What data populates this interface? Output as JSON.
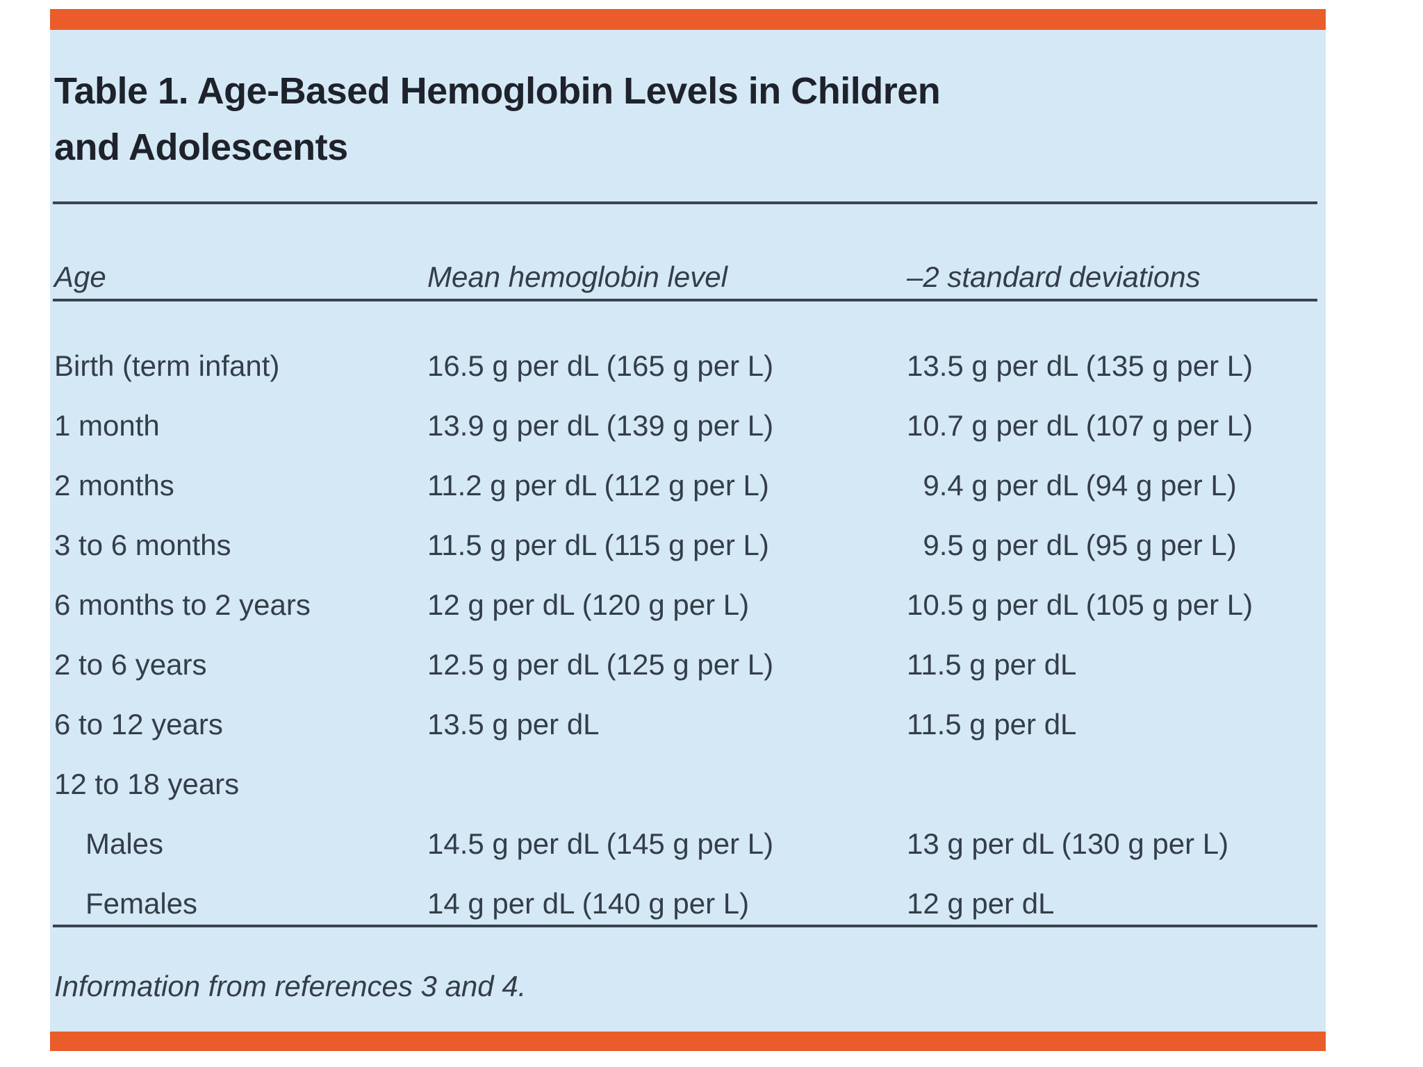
{
  "colors": {
    "accent_orange": "#ea5c2a",
    "panel_blue": "#d5e8f5",
    "title_text": "#1e222b",
    "body_text": "#333e49",
    "rule": "#3a444f"
  },
  "table": {
    "title": "Table 1. Age-Based Hemoglobin Levels in Children\nand Adolescents",
    "columns": [
      "Age",
      "Mean hemoglobin level",
      "–2 standard deviations"
    ],
    "rows": [
      {
        "age": "Birth (term infant)",
        "mean": "16.5 g per dL (165 g per L)",
        "minus_2_sd": "13.5 g per dL (135 g per L)",
        "sub_row": false
      },
      {
        "age": "1 month",
        "mean": "13.9 g per dL (139 g per L)",
        "minus_2_sd": "10.7 g per dL (107 g per L)",
        "sub_row": false
      },
      {
        "age": "2 months",
        "mean": "11.2 g per dL (112 g per L)",
        "minus_2_sd": "  9.4 g per dL (94 g per L)",
        "sub_row": false
      },
      {
        "age": "3 to 6 months",
        "mean": "11.5 g per dL (115 g per L)",
        "minus_2_sd": "  9.5 g per dL (95 g per L)",
        "sub_row": false
      },
      {
        "age": "6 months to 2 years",
        "mean": "12 g per dL (120 g per L)",
        "minus_2_sd": "10.5 g per dL (105 g per L)",
        "sub_row": false
      },
      {
        "age": "2 to 6 years",
        "mean": "12.5 g per dL (125 g per L)",
        "minus_2_sd": "11.5 g per dL",
        "sub_row": false
      },
      {
        "age": "6 to 12 years",
        "mean": "13.5 g per dL",
        "minus_2_sd": "11.5 g per dL",
        "sub_row": false
      },
      {
        "age": "12 to 18 years",
        "mean": "",
        "minus_2_sd": "",
        "sub_row": false
      },
      {
        "age": "Males",
        "mean": "14.5 g per dL (145 g per L)",
        "minus_2_sd": "13 g per dL (130 g per L)",
        "sub_row": true
      },
      {
        "age": "Females",
        "mean": "14 g per dL (140 g per L)",
        "minus_2_sd": "12 g per dL",
        "sub_row": true
      }
    ],
    "footnote": "Information from references 3 and 4."
  }
}
